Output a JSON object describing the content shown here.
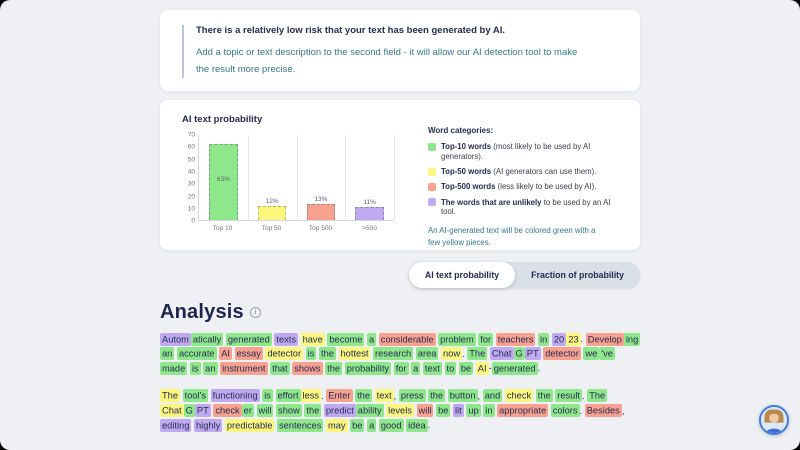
{
  "colors": {
    "highlight": {
      "g": "#8fe78c",
      "y": "#fbf77e",
      "r": "#f7a191",
      "p": "#bfaaf1",
      "n": "transparent"
    },
    "navy": "#252b52",
    "teal": "#35798b",
    "page_bg": "#eef0f3",
    "tab_group_bg": "#d9e0e6",
    "avatar_ring": "#3f7be0"
  },
  "risk_card": {
    "line1_prefix": "There is a ",
    "line1_bold": "relatively low risk",
    "line1_suffix": " that your text has been generated by AI.",
    "line2": "Add a topic or text description to the second field - it will allow our AI detection tool to make the result more precise."
  },
  "chart_card": {
    "title": "AI text probability",
    "legend_title": "Word categories:",
    "legend": [
      {
        "color": "g",
        "bold": "Top-10 words",
        "rest": " (most likely to be used by AI generators)."
      },
      {
        "color": "y",
        "bold": "Top-50 words",
        "rest": " (AI generators can use them)."
      },
      {
        "color": "r",
        "bold": "Top-500 words",
        "rest": " (less likely to be used by AI)."
      },
      {
        "color": "p",
        "bold": "The words that are unlikely",
        "rest": " to be used by an AI tool."
      }
    ],
    "note": "An AI-generated text will be colored green with a few yellow pieces."
  },
  "chart_data": {
    "type": "bar",
    "title": "AI text probability",
    "categories": [
      "Top 10",
      "Top 50",
      "Top 500",
      ">500"
    ],
    "values": [
      63,
      12,
      13,
      11
    ],
    "bar_labels": [
      "63%",
      "12%",
      "13%",
      "11%"
    ],
    "bar_color_keys": [
      "g",
      "y",
      "r",
      "p"
    ],
    "xlabel": "",
    "ylabel": "",
    "ylim": [
      0,
      70
    ],
    "yticks": [
      0,
      10,
      20,
      30,
      40,
      50,
      60,
      70
    ],
    "grid": "vertical category separators",
    "legend_position": "right"
  },
  "tabs": {
    "items": [
      {
        "label": "AI text probability",
        "active": true
      },
      {
        "label": "Fraction of probability",
        "active": false
      }
    ]
  },
  "analysis": {
    "heading": "Analysis",
    "info_icon": "i",
    "paragraphs": [
      [
        [
          "Autom",
          "p"
        ],
        [
          "atically",
          "g",
          1
        ],
        [
          "generated",
          "g"
        ],
        [
          "texts",
          "p"
        ],
        [
          "have",
          "y"
        ],
        [
          "become",
          "g"
        ],
        [
          "a",
          "g"
        ],
        [
          "considerable",
          "r"
        ],
        [
          "problem",
          "g"
        ],
        [
          "for",
          "g"
        ],
        [
          "teachers",
          "r"
        ],
        [
          "in",
          "g"
        ],
        [
          "20",
          "p"
        ],
        [
          "23",
          "y",
          1
        ],
        [
          ".",
          "n",
          1
        ],
        [
          "Develop",
          "r"
        ],
        [
          "ing",
          "g",
          1
        ],
        [
          "an",
          "g"
        ],
        [
          "accurate",
          "g"
        ],
        [
          "AI",
          "r"
        ],
        [
          "essay",
          "r"
        ],
        [
          "detector",
          "y"
        ],
        [
          "is",
          "g"
        ],
        [
          "the",
          "g"
        ],
        [
          "hottest",
          "y"
        ],
        [
          "research",
          "g"
        ],
        [
          "area",
          "g"
        ],
        [
          "now",
          "y"
        ],
        [
          ".",
          "n",
          1
        ],
        [
          "The",
          "g"
        ],
        [
          "Chat",
          "p"
        ],
        [
          "G",
          "g",
          1
        ],
        [
          "PT",
          "p",
          1
        ],
        [
          "detector",
          "r"
        ],
        [
          "we",
          "g"
        ],
        [
          "'ve",
          "g",
          1
        ],
        [
          "made",
          "g"
        ],
        [
          "is",
          "g"
        ],
        [
          "an",
          "g"
        ],
        [
          "instrument",
          "r"
        ],
        [
          "that",
          "g"
        ],
        [
          "shows",
          "r"
        ],
        [
          "the",
          "g"
        ],
        [
          "probability",
          "g"
        ],
        [
          "for",
          "g"
        ],
        [
          "a",
          "g"
        ],
        [
          "text",
          "g"
        ],
        [
          "to",
          "g"
        ],
        [
          "be",
          "g"
        ],
        [
          "AI",
          "y"
        ],
        [
          "-",
          "n",
          1
        ],
        [
          "generated",
          "g",
          1
        ],
        [
          ".",
          "n",
          1
        ]
      ],
      [
        [
          "The",
          "y"
        ],
        [
          "tool's",
          "g"
        ],
        [
          "functioning",
          "p"
        ],
        [
          "is",
          "g"
        ],
        [
          "effort",
          "g"
        ],
        [
          "less",
          "y",
          1
        ],
        [
          ".",
          "n",
          1
        ],
        [
          "Enter",
          "r"
        ],
        [
          "the",
          "g"
        ],
        [
          "text",
          "y"
        ],
        [
          ",",
          "n",
          1
        ],
        [
          "press",
          "g"
        ],
        [
          "the",
          "g"
        ],
        [
          "button",
          "g"
        ],
        [
          ",",
          "n",
          1
        ],
        [
          "and",
          "g"
        ],
        [
          "check",
          "y"
        ],
        [
          "the",
          "g"
        ],
        [
          "result",
          "g"
        ],
        [
          ".",
          "n",
          1
        ],
        [
          "The",
          "g"
        ],
        [
          "Chat",
          "y"
        ],
        [
          "G",
          "g",
          1
        ],
        [
          "PT",
          "p",
          1
        ],
        [
          "check",
          "r"
        ],
        [
          "er",
          "g",
          1
        ],
        [
          "will",
          "g"
        ],
        [
          "show",
          "g"
        ],
        [
          "the",
          "g"
        ],
        [
          "predict",
          "p"
        ],
        [
          "ability",
          "g",
          1
        ],
        [
          "levels",
          "y"
        ],
        [
          "will",
          "r"
        ],
        [
          "be",
          "g"
        ],
        [
          "lit",
          "p"
        ],
        [
          "up",
          "g"
        ],
        [
          "in",
          "g"
        ],
        [
          "appropriate",
          "r"
        ],
        [
          "colors",
          "g"
        ],
        [
          ".",
          "n",
          1
        ],
        [
          "Besides",
          "r"
        ],
        [
          ",",
          "n",
          1
        ],
        [
          "editing",
          "p"
        ],
        [
          "highly",
          "p"
        ],
        [
          "predictable",
          "y"
        ],
        [
          "sentences",
          "g"
        ],
        [
          "may",
          "y"
        ],
        [
          "be",
          "g"
        ],
        [
          "a",
          "g"
        ],
        [
          "good",
          "g"
        ],
        [
          "idea",
          "g"
        ],
        [
          ".",
          "n",
          1
        ]
      ]
    ]
  },
  "avatar": {
    "name": "support-chat-avatar"
  }
}
